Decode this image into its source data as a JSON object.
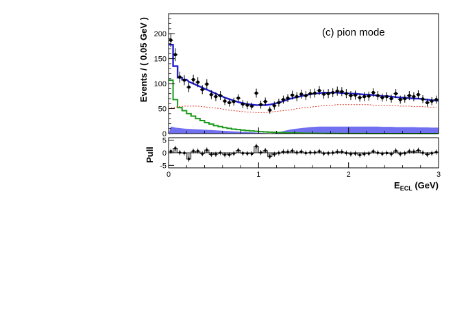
{
  "chart_data": [
    {
      "type": "scatter",
      "panel": "main",
      "annotation": "(c) pion mode",
      "ylabel": "Events / ( 0.05 GeV )",
      "xlim": [
        0,
        3
      ],
      "ylim": [
        0,
        240
      ],
      "x_ticks": [
        "0",
        "1",
        "2",
        "3"
      ],
      "y_ticks": [
        "0",
        "50",
        "100",
        "150",
        "200"
      ],
      "colors": {
        "data": "#000000",
        "total_fit": "#1f1fd0",
        "green_component": "#1a9a1a",
        "dashed_component": "#e03a2a",
        "filled_component": "#7070f0"
      },
      "x": [
        0.025,
        0.075,
        0.125,
        0.175,
        0.225,
        0.275,
        0.325,
        0.375,
        0.425,
        0.475,
        0.525,
        0.575,
        0.625,
        0.675,
        0.725,
        0.775,
        0.825,
        0.875,
        0.925,
        0.975,
        1.025,
        1.075,
        1.125,
        1.175,
        1.225,
        1.275,
        1.325,
        1.375,
        1.425,
        1.475,
        1.525,
        1.575,
        1.625,
        1.675,
        1.725,
        1.775,
        1.825,
        1.875,
        1.925,
        1.975,
        2.025,
        2.075,
        2.125,
        2.175,
        2.225,
        2.275,
        2.325,
        2.375,
        2.425,
        2.475,
        2.525,
        2.575,
        2.625,
        2.675,
        2.725,
        2.775,
        2.825,
        2.875,
        2.925,
        2.975
      ],
      "series": [
        {
          "role": "data",
          "values": [
            187,
            158,
            113,
            107,
            93,
            108,
            103,
            88,
            99,
            78,
            74,
            76,
            65,
            62,
            64,
            71,
            59,
            57,
            55,
            81,
            58,
            64,
            47,
            56,
            62,
            68,
            71,
            77,
            74,
            79,
            76,
            80,
            81,
            86,
            79,
            80,
            82,
            85,
            84,
            80,
            76,
            77,
            72,
            74,
            75,
            82,
            76,
            72,
            74,
            70,
            80,
            68,
            70,
            76,
            74,
            78,
            69,
            62,
            65,
            68
          ],
          "errors": [
            14,
            13,
            11,
            10,
            10,
            10,
            10,
            9,
            10,
            9,
            9,
            9,
            8,
            8,
            8,
            8,
            8,
            8,
            7,
            9,
            8,
            8,
            7,
            8,
            8,
            8,
            8,
            9,
            9,
            9,
            9,
            9,
            9,
            9,
            9,
            9,
            9,
            9,
            9,
            9,
            9,
            9,
            8,
            9,
            9,
            9,
            9,
            8,
            9,
            8,
            9,
            8,
            8,
            9,
            9,
            9,
            8,
            8,
            8,
            8
          ]
        },
        {
          "role": "total_fit",
          "values": [
            178,
            135,
            112,
            108,
            104,
            100,
            96,
            92,
            88,
            84,
            80,
            76,
            72,
            69,
            66,
            63,
            61,
            59,
            58,
            57,
            57,
            57,
            58,
            60,
            62,
            65,
            68,
            71,
            73,
            75,
            77,
            79,
            80,
            81,
            82,
            82,
            82,
            82,
            81,
            81,
            80,
            80,
            79,
            78,
            78,
            77,
            76,
            75,
            75,
            74,
            73,
            72,
            72,
            71,
            70,
            70,
            69,
            68,
            67,
            66
          ]
        },
        {
          "role": "green_component",
          "values": [
            107,
            68,
            52,
            46,
            40,
            35,
            30,
            26,
            22,
            19,
            16,
            14,
            12,
            10.5,
            9,
            8,
            7,
            6,
            5.3,
            4.6,
            4,
            3.5,
            3,
            2.6,
            2.2,
            1.9,
            1.6,
            1.4,
            1.2,
            1,
            0.9,
            0.8,
            0.7,
            0.6,
            0.5,
            0.4,
            0.35,
            0.3,
            0.25,
            0.2,
            0.18,
            0.15,
            0.12,
            0.1,
            0.08,
            0.07,
            0.06,
            0.05,
            0.04,
            0.03,
            0.03,
            0.02,
            0.02,
            0.02,
            0.01,
            0.01,
            0.01,
            0.01,
            0.01,
            0.01
          ]
        },
        {
          "role": "dashed_component",
          "values": [
            52,
            53,
            54,
            55,
            55,
            55,
            55,
            54,
            53,
            52,
            51,
            50,
            48,
            47,
            46,
            45,
            44,
            43,
            43,
            42,
            42,
            42,
            43,
            44,
            45,
            46,
            47,
            48,
            50,
            51,
            52,
            53,
            54,
            55,
            56,
            57,
            57,
            58,
            58,
            58,
            58,
            58,
            58,
            58,
            58,
            57,
            57,
            57,
            56,
            56,
            56,
            55,
            55,
            55,
            54,
            54,
            54,
            53,
            53,
            53
          ]
        },
        {
          "role": "filled_component",
          "values": [
            14,
            12,
            11,
            10,
            9.5,
            9,
            8.5,
            8,
            7.5,
            7,
            6.5,
            6,
            5.5,
            5,
            4.5,
            4,
            3.5,
            3,
            2.5,
            2,
            1.5,
            1,
            0.5,
            1,
            3,
            5,
            7,
            9,
            10,
            11,
            12,
            13,
            13.5,
            14,
            14,
            14,
            14,
            14,
            14,
            14,
            14,
            14,
            14,
            14,
            14,
            14,
            14,
            13.5,
            13.5,
            13.5,
            13,
            13,
            13,
            13,
            13,
            12.5,
            12.5,
            12.5,
            12,
            12
          ]
        }
      ]
    },
    {
      "type": "bar",
      "panel": "pull",
      "ylabel": "Pull",
      "xlabel_main": "E",
      "xlabel_sub": "ECL",
      "xlabel_unit": "(GeV)",
      "xlim": [
        0,
        3
      ],
      "ylim": [
        -6,
        6
      ],
      "x_ticks": [
        "0",
        "1",
        "2",
        "3"
      ],
      "y_ticks": [
        "5",
        "0",
        "-5"
      ],
      "values": [
        0.6,
        1.8,
        0.1,
        -0.1,
        -2.5,
        0.7,
        0.7,
        -0.4,
        1.1,
        -0.7,
        -0.6,
        0.0,
        -0.8,
        -0.8,
        -0.3,
        1.0,
        -0.2,
        -0.3,
        -0.4,
        2.6,
        0.1,
        0.9,
        -1.5,
        -0.6,
        -0.1,
        0.4,
        0.4,
        0.8,
        0.1,
        0.5,
        -0.1,
        0.1,
        0.1,
        0.6,
        -0.3,
        -0.2,
        0.0,
        0.4,
        0.4,
        -0.1,
        -0.5,
        -0.3,
        -0.9,
        -0.5,
        -0.3,
        0.6,
        0.0,
        -0.4,
        -0.1,
        -0.5,
        0.8,
        -0.5,
        -0.2,
        0.6,
        0.5,
        1.0,
        0.0,
        -0.7,
        -0.2,
        0.3
      ]
    }
  ]
}
